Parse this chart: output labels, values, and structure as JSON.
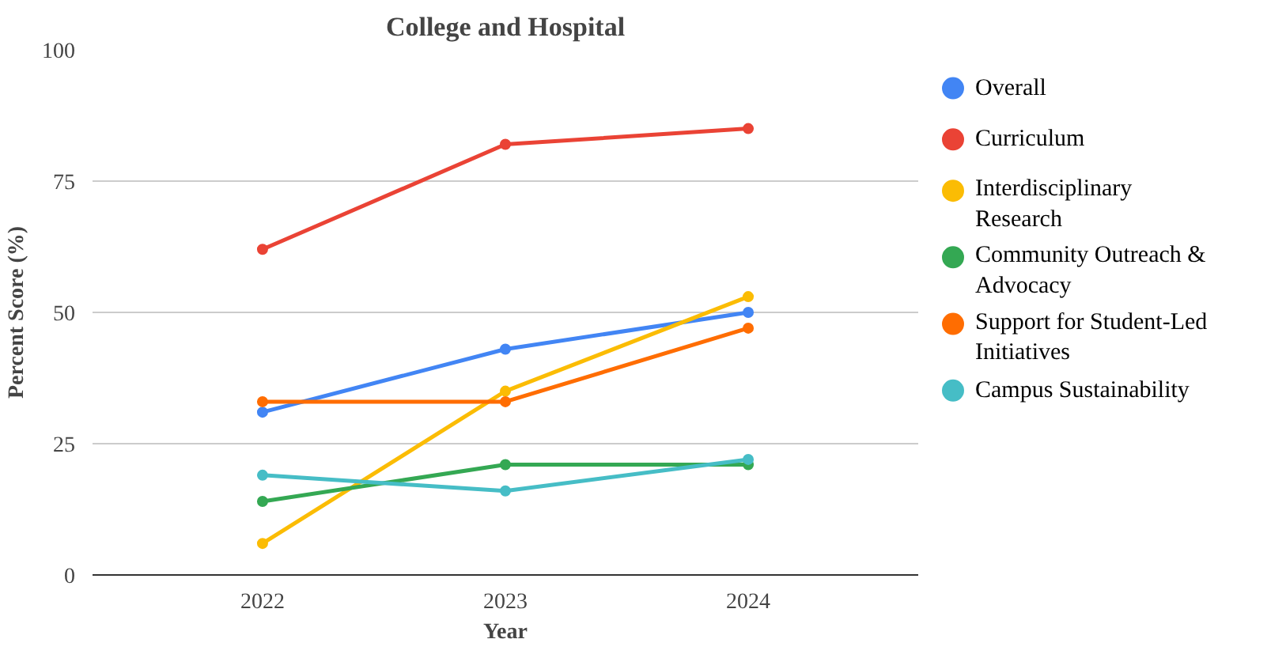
{
  "chart_data": {
    "type": "line",
    "title": "College and Hospital",
    "xlabel": "Year",
    "ylabel": "Percent Score (%)",
    "categories": [
      "2022",
      "2023",
      "2024"
    ],
    "series": [
      {
        "name": "Overall",
        "color": "#4285f4",
        "values": [
          31,
          43,
          50
        ]
      },
      {
        "name": "Curriculum",
        "color": "#ea4335",
        "values": [
          62,
          82,
          85
        ]
      },
      {
        "name": "Interdisciplinary Research",
        "color": "#fbbc04",
        "values": [
          6,
          35,
          53
        ]
      },
      {
        "name": "Community Outreach & Advocacy",
        "color": "#34a853",
        "values": [
          14,
          21,
          21
        ]
      },
      {
        "name": "Support for Student-Led Initiatives",
        "color": "#ff6d01",
        "values": [
          33,
          33,
          47
        ]
      },
      {
        "name": "Campus Sustainability",
        "color": "#46bdc6",
        "values": [
          19,
          16,
          22
        ]
      }
    ],
    "ylim": [
      0,
      100
    ],
    "yticks": [
      0,
      25,
      50,
      75,
      100
    ],
    "grid": "y",
    "legend": "right",
    "marker": "circle"
  }
}
